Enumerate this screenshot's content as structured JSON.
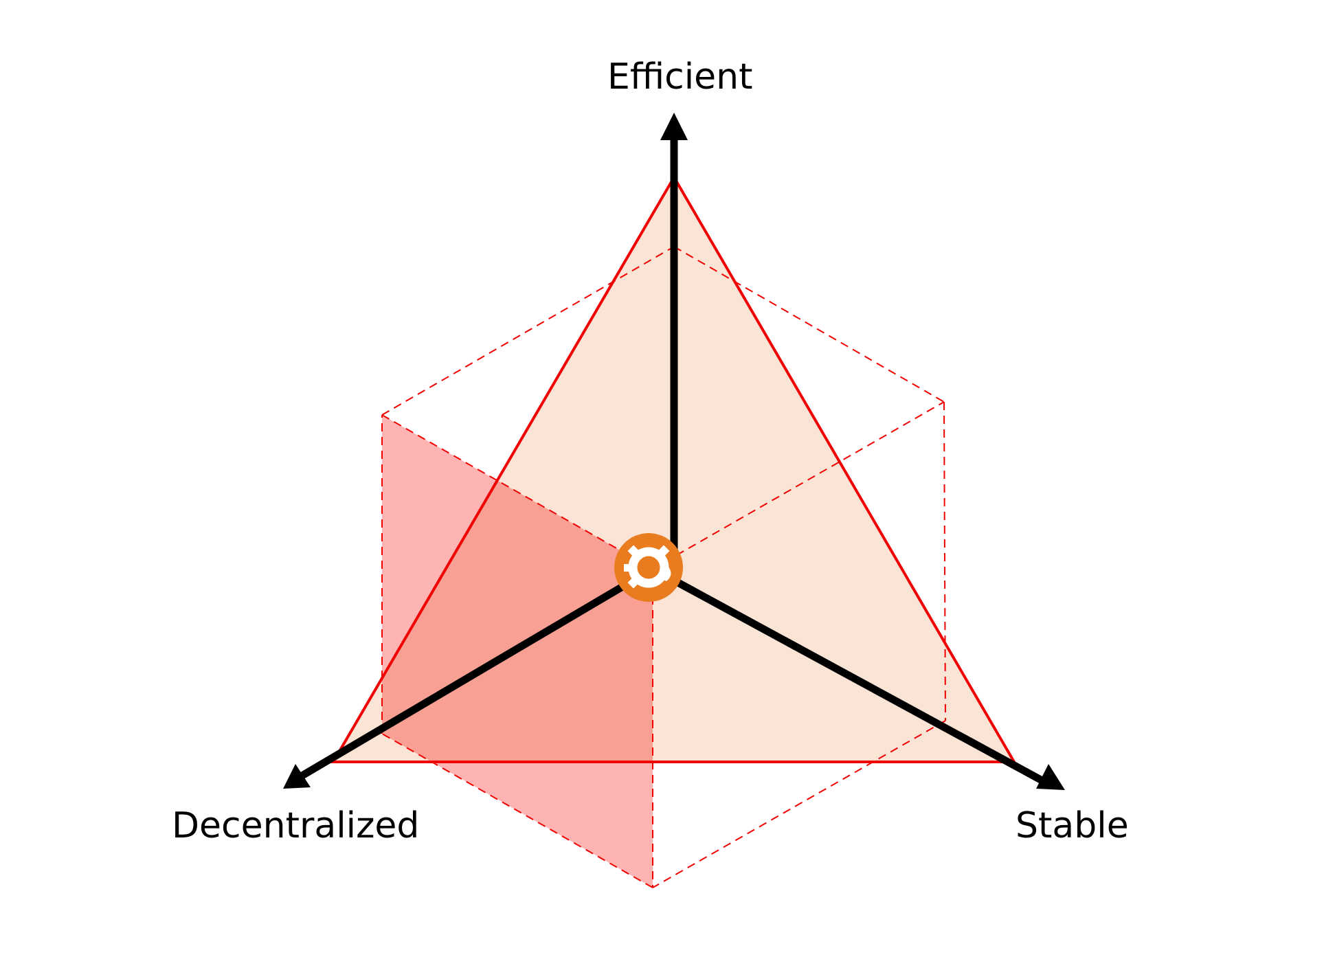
{
  "axes": {
    "top": "Efficient",
    "left": "Decentralized",
    "right": "Stable"
  },
  "center_icon": "orange-circle-logo-icon",
  "colors": {
    "triangle_fill": "#fae4d6",
    "triangle_stroke": "#f00000",
    "shaded_face": "#ff9a9e",
    "overlap_face": "#f7a094",
    "dashed_stroke": "#f00000",
    "axis": "#000000",
    "logo": "#e97c1f"
  }
}
